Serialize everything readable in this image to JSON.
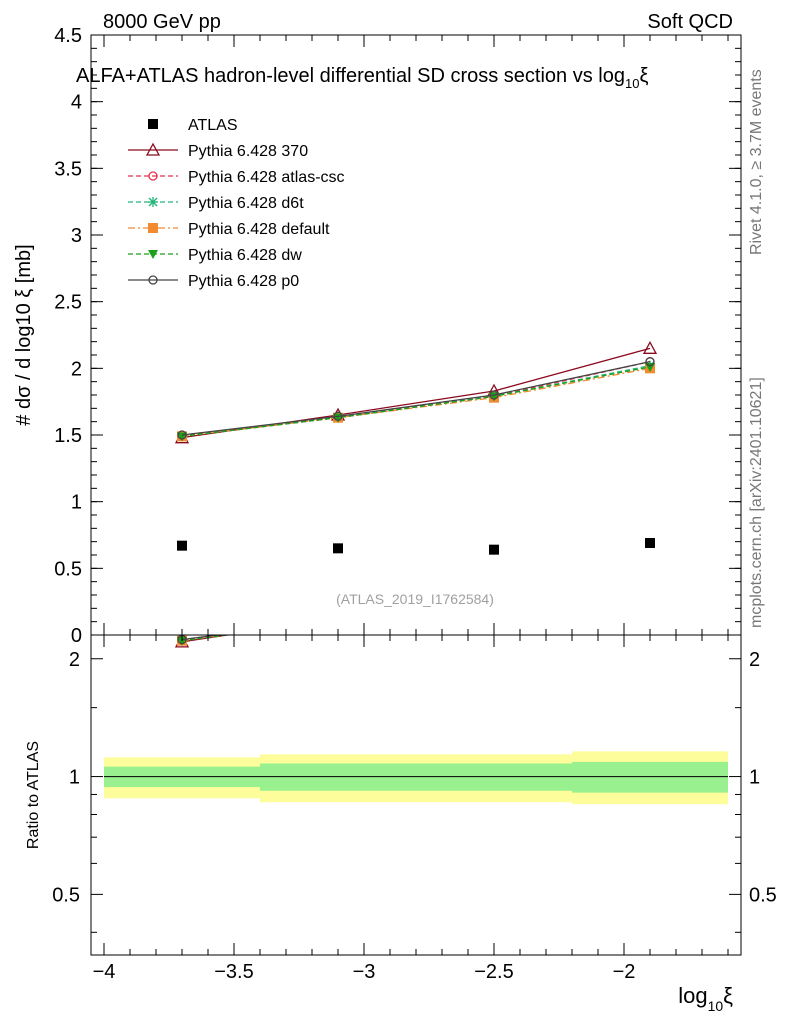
{
  "header": {
    "left": "8000 GeV pp",
    "right": "Soft QCD",
    "title": "ALFA+ATLAS hadron-level differential SD cross section vs log",
    "title_sub": "10",
    "title_end": "ξ",
    "side_rivet": "Rivet 4.1.0, ≥ 3.7M events",
    "side_mcplots": "mcplots.cern.ch [arXiv:2401.10621]",
    "watermark": "(ATLAS_2019_I1762584)"
  },
  "axes": {
    "ylabel_main": "#  dσ / d log10 ξ  [mb]",
    "ylabel_ratio": "Ratio to ATLAS",
    "xlabel": "log10 ξ",
    "xlabel_main": "log",
    "xlabel_sub": "10",
    "xlabel_end": "ξ"
  },
  "chart_data": {
    "type": "scatter",
    "title": "ALFA+ATLAS hadron-level differential SD cross section vs log10 ξ",
    "xlabel": "log10 ξ",
    "ylabel": "# dσ / d log10 ξ [mb]",
    "xlim": [
      -4.05,
      -1.55
    ],
    "ylim": [
      0,
      4.5
    ],
    "ratio_ylim": [
      0.35,
      2.3
    ],
    "x_ticks": [
      -4,
      -3.5,
      -3,
      -2.5,
      -2
    ],
    "x_tick_labels": [
      "−4",
      "−3.5",
      "−3",
      "−2.5",
      "−2"
    ],
    "y_ticks": [
      0,
      0.5,
      1,
      1.5,
      2,
      2.5,
      3,
      3.5,
      4,
      4.5
    ],
    "y_tick_labels": [
      "0",
      "0.5",
      "1",
      "1.5",
      "2",
      "2.5",
      "3",
      "3.5",
      "4",
      "4.5"
    ],
    "ratio_ticks": [
      0.5,
      1,
      2
    ],
    "ratio_tick_labels": [
      "0.5",
      "1",
      "2"
    ],
    "x": [
      -3.7,
      -3.1,
      -2.5,
      -1.9
    ],
    "bin_edges": [
      -4.0,
      -3.4,
      -2.8,
      -2.2,
      -1.6
    ],
    "data_band_inner": [
      [
        0.94,
        1.06
      ],
      [
        0.92,
        1.08
      ],
      [
        0.92,
        1.08
      ],
      [
        0.91,
        1.09
      ]
    ],
    "data_band_outer": [
      [
        0.88,
        1.12
      ],
      [
        0.86,
        1.14
      ],
      [
        0.86,
        1.14
      ],
      [
        0.85,
        1.16
      ]
    ],
    "series": [
      {
        "name": "ATLAS",
        "values": [
          0.67,
          0.65,
          0.64,
          0.69
        ],
        "color": "#000000",
        "marker": "square",
        "dash": "",
        "line": false
      },
      {
        "name": "Pythia 6.428 370",
        "values": [
          1.48,
          1.65,
          1.83,
          2.15
        ],
        "color": "#8b0a1e",
        "marker": "triangle-open",
        "dash": "",
        "line": true
      },
      {
        "name": "Pythia 6.428 atlas-csc",
        "values": [
          1.5,
          1.63,
          1.79,
          2.05
        ],
        "color": "#e8304a",
        "marker": "circle-open",
        "dash": "5,3",
        "line": true
      },
      {
        "name": "Pythia 6.428 d6t",
        "values": [
          1.49,
          1.63,
          1.79,
          2.02
        ],
        "color": "#22b57a",
        "marker": "star",
        "dash": "5,3",
        "line": true
      },
      {
        "name": "Pythia 6.428 default",
        "values": [
          1.49,
          1.63,
          1.78,
          2.0
        ],
        "color": "#f28a30",
        "marker": "square",
        "dash": "7,3,2,3",
        "line": true
      },
      {
        "name": "Pythia 6.428 dw",
        "values": [
          1.49,
          1.63,
          1.79,
          2.01
        ],
        "color": "#1aa01a",
        "marker": "triangle-down",
        "dash": "5,3",
        "line": true
      },
      {
        "name": "Pythia 6.428 p0",
        "values": [
          1.5,
          1.64,
          1.8,
          2.05
        ],
        "color": "#444444",
        "marker": "circle-open",
        "dash": "",
        "line": true
      }
    ],
    "colors": {
      "band_inner": "#99f08f",
      "band_outer": "#fdfd9b"
    }
  }
}
